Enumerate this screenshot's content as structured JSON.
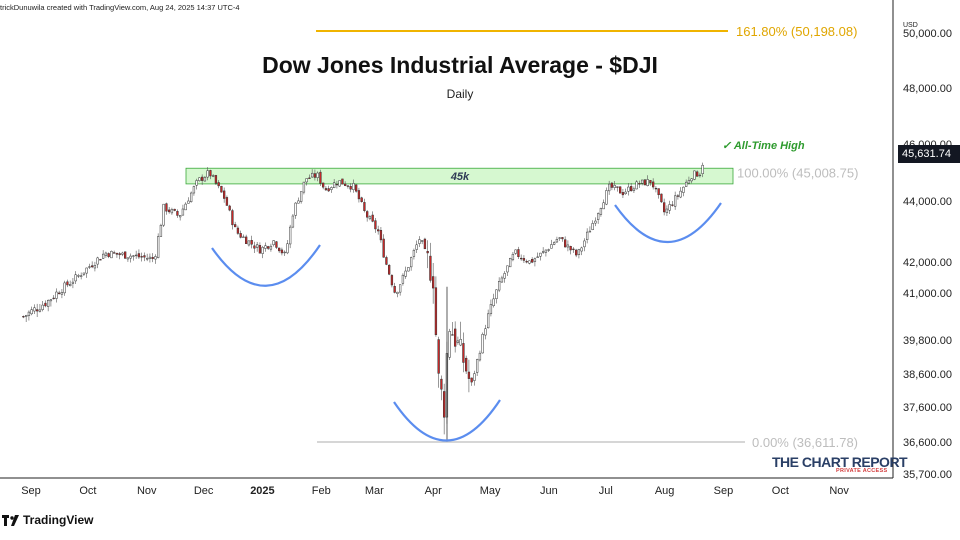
{
  "attribution": "trickDunuwila created with TradingView.com, Aug 24, 2025 14:37 UTC-4",
  "logo_text": "TradingView",
  "brand": {
    "name": "THE CHART REPORT",
    "tagline": "PRIVATE ACCESS"
  },
  "chart_data": {
    "type": "candlestick",
    "title": "Dow Jones Industrial Average - $DJI",
    "subtitle": "Daily",
    "currency_label": "USD",
    "y_ticks": [
      "35,700.00",
      "36,600.00",
      "37,600.00",
      "38,600.00",
      "39,800.00",
      "41,000.00",
      "42,000.00",
      "44,000.00",
      "46,000.00",
      "48,000.00",
      "50,000.00"
    ],
    "y_tick_values": [
      35700,
      36600,
      37600,
      38600,
      39800,
      41000,
      42000,
      44000,
      46000,
      48000,
      50000
    ],
    "x_ticks": [
      "Sep",
      "Oct",
      "Nov",
      "Dec",
      "2025",
      "Feb",
      "Mar",
      "Apr",
      "May",
      "Jun",
      "Jul",
      "Aug",
      "Sep",
      "Oct",
      "Nov"
    ],
    "current_price": "45,631.74",
    "fib_levels": [
      {
        "label": "161.80% (50,198.08)",
        "value": 50198.08,
        "color": "#f0b400"
      },
      {
        "label": "100.00% (45,008.75)",
        "value": 45008.75,
        "color": "#c8c8c8"
      },
      {
        "label": "0.00% (36,611.78)",
        "value": 36611.78,
        "color": "#c8c8c8"
      }
    ],
    "resistance_zone": {
      "label": "45k",
      "low": 44600,
      "high": 45150
    },
    "annotation": "✓ All-Time High",
    "path": [
      [
        40400,
        "2024-08-28"
      ],
      [
        40800,
        "2024-09-10"
      ],
      [
        41500,
        "2024-09-25"
      ],
      [
        42300,
        "2024-10-10"
      ],
      [
        42200,
        "2024-10-25"
      ],
      [
        42100,
        "2024-11-05"
      ],
      [
        43800,
        "2024-11-10"
      ],
      [
        43500,
        "2024-11-18"
      ],
      [
        44700,
        "2024-11-28"
      ],
      [
        45000,
        "2024-12-04"
      ],
      [
        44100,
        "2024-12-12"
      ],
      [
        43000,
        "2024-12-18"
      ],
      [
        42700,
        "2024-12-24"
      ],
      [
        42400,
        "2024-12-31"
      ],
      [
        42700,
        "2025-01-07"
      ],
      [
        42200,
        "2025-01-13"
      ],
      [
        43600,
        "2025-01-17"
      ],
      [
        44800,
        "2025-01-24"
      ],
      [
        44900,
        "2025-01-30"
      ],
      [
        44400,
        "2025-02-03"
      ],
      [
        44700,
        "2025-02-10"
      ],
      [
        44500,
        "2025-02-18"
      ],
      [
        43600,
        "2025-02-24"
      ],
      [
        43000,
        "2025-03-03"
      ],
      [
        42000,
        "2025-03-07"
      ],
      [
        41000,
        "2025-03-12"
      ],
      [
        41600,
        "2025-03-17"
      ],
      [
        42800,
        "2025-03-25"
      ],
      [
        41500,
        "2025-04-01"
      ],
      [
        38300,
        "2025-04-04"
      ],
      [
        37600,
        "2025-04-07"
      ],
      [
        40300,
        "2025-04-09"
      ],
      [
        39500,
        "2025-04-15"
      ],
      [
        38200,
        "2025-04-21"
      ],
      [
        40100,
        "2025-04-28"
      ],
      [
        41300,
        "2025-05-06"
      ],
      [
        42300,
        "2025-05-14"
      ],
      [
        42000,
        "2025-05-22"
      ],
      [
        42300,
        "2025-05-29"
      ],
      [
        42800,
        "2025-06-06"
      ],
      [
        42200,
        "2025-06-16"
      ],
      [
        43400,
        "2025-06-25"
      ],
      [
        44500,
        "2025-07-03"
      ],
      [
        44300,
        "2025-07-10"
      ],
      [
        44600,
        "2025-07-18"
      ],
      [
        44700,
        "2025-07-25"
      ],
      [
        43600,
        "2025-08-01"
      ],
      [
        44200,
        "2025-08-08"
      ],
      [
        44900,
        "2025-08-15"
      ],
      [
        45000,
        "2025-08-20"
      ],
      [
        45630,
        "2025-08-22"
      ]
    ]
  }
}
